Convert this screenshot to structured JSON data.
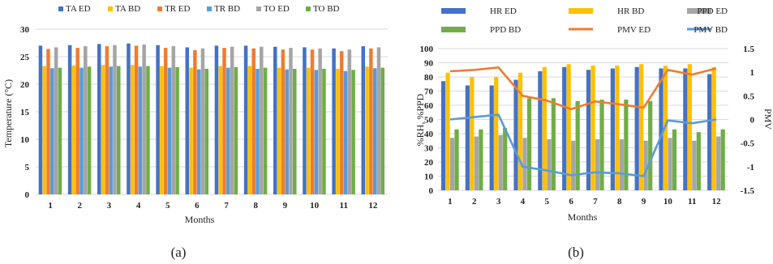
{
  "chart_data": [
    {
      "type": "bar",
      "caption": "(a)",
      "xlabel": "Months",
      "ylabel": "Temperature (°C)",
      "ylim": [
        0,
        30
      ],
      "yticks": [
        0,
        5,
        10,
        15,
        20,
        25,
        30
      ],
      "grid": true,
      "legend": "top-center",
      "categories": [
        "1",
        "2",
        "3",
        "4",
        "5",
        "6",
        "7",
        "8",
        "9",
        "10",
        "11",
        "12"
      ],
      "series": [
        {
          "name": "TA ED",
          "color": "#4472C4",
          "values": [
            27.0,
            27.1,
            27.3,
            27.4,
            27.1,
            26.7,
            27.0,
            27.0,
            26.8,
            26.7,
            26.5,
            26.9
          ]
        },
        {
          "name": "TA BD",
          "color": "#FFC000",
          "values": [
            23.3,
            23.4,
            23.5,
            23.5,
            23.3,
            23.0,
            23.3,
            23.3,
            23.0,
            23.0,
            22.8,
            23.2
          ]
        },
        {
          "name": "TR ED",
          "color": "#ED7D31",
          "values": [
            26.4,
            26.6,
            26.9,
            27.0,
            26.6,
            26.2,
            26.6,
            26.5,
            26.3,
            26.3,
            26.0,
            26.5
          ]
        },
        {
          "name": "TR BD",
          "color": "#5B9BD5",
          "values": [
            22.9,
            23.0,
            23.2,
            23.2,
            23.0,
            22.7,
            23.0,
            22.8,
            22.7,
            22.6,
            22.4,
            22.9
          ]
        },
        {
          "name": "TO ED",
          "color": "#A5A5A5",
          "values": [
            26.7,
            26.9,
            27.1,
            27.2,
            26.9,
            26.5,
            26.8,
            26.8,
            26.6,
            26.5,
            26.3,
            26.7
          ]
        },
        {
          "name": "TO BD",
          "color": "#70AD47",
          "values": [
            23.0,
            23.2,
            23.3,
            23.3,
            23.1,
            22.8,
            23.1,
            23.0,
            22.8,
            22.8,
            22.6,
            23.0
          ]
        }
      ]
    },
    {
      "type": "bar+line",
      "caption": "(b)",
      "xlabel": "Months",
      "ylabel": "%RH, %PPD",
      "y2label": "PMV",
      "ylim": [
        0,
        100
      ],
      "yticks": [
        0,
        10,
        20,
        30,
        40,
        50,
        60,
        70,
        80,
        90,
        100
      ],
      "y2lim": [
        -1.5,
        1.5
      ],
      "y2ticks": [
        "-1.5",
        "-1",
        "-0.5",
        "0",
        "0.5",
        "1",
        "1.5"
      ],
      "grid": true,
      "legend": "top",
      "categories": [
        "1",
        "2",
        "3",
        "4",
        "5",
        "6",
        "7",
        "8",
        "9",
        "10",
        "11",
        "12"
      ],
      "series": [
        {
          "name": "HR ED",
          "kind": "bar",
          "color": "#4472C4",
          "values": [
            77,
            74,
            74,
            78,
            84,
            87,
            85,
            86,
            87,
            86,
            86,
            82
          ]
        },
        {
          "name": "HR BD",
          "kind": "bar",
          "color": "#FFC000",
          "values": [
            83,
            80,
            80,
            83,
            87,
            89,
            88,
            88,
            89,
            88,
            89,
            87
          ]
        },
        {
          "name": "PPD ED",
          "kind": "bar",
          "color": "#A5A5A5",
          "values": [
            37,
            38,
            39,
            37,
            36,
            35,
            36,
            36,
            35,
            37,
            35,
            38
          ]
        },
        {
          "name": "PPD BD",
          "kind": "bar",
          "color": "#70AD47",
          "values": [
            43,
            43,
            44,
            65,
            65,
            63,
            64,
            64,
            63,
            43,
            41,
            43
          ]
        },
        {
          "name": "PMV ED",
          "kind": "line",
          "axis": "y2",
          "color": "#ED7D31",
          "values": [
            1.02,
            1.05,
            1.1,
            0.5,
            0.4,
            0.22,
            0.38,
            0.32,
            0.25,
            1.05,
            0.95,
            1.08
          ]
        },
        {
          "name": "PMV BD",
          "kind": "line",
          "axis": "y2",
          "color": "#5B9BD5",
          "values": [
            0.0,
            0.05,
            0.1,
            -1.0,
            -1.08,
            -1.18,
            -1.12,
            -1.14,
            -1.2,
            -0.02,
            -0.08,
            0.0
          ]
        }
      ]
    }
  ]
}
